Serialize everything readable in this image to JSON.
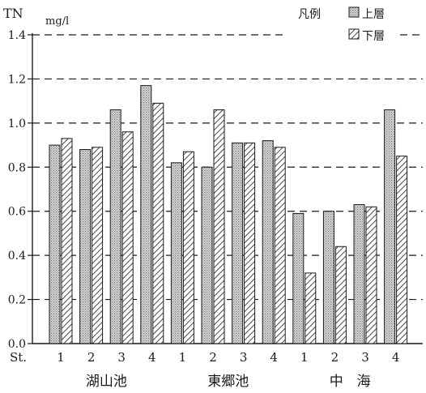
{
  "chart_data": {
    "type": "bar",
    "ylabel": "TN",
    "yunit": "mg/l",
    "ylim": [
      0,
      1.4
    ],
    "yticks": [
      "0.0",
      "0.2",
      "0.4",
      "0.6",
      "0.8",
      "1.0",
      "1.2",
      "1.4"
    ],
    "grid": "dashed horizontal at 1.4, 1.2, 1.0, 0.8, 0.6, 0.4, 0.2",
    "x_prefix": "St.",
    "categories": [
      "1",
      "2",
      "3",
      "4",
      "1",
      "2",
      "3",
      "4",
      "1",
      "2",
      "3",
      "4"
    ],
    "groups": [
      {
        "label": "湖山池",
        "stations": [
          0,
          1,
          2,
          3
        ]
      },
      {
        "label": "東郷池",
        "stations": [
          4,
          5,
          6,
          7
        ]
      },
      {
        "label": "中　海",
        "stations": [
          8,
          9,
          10,
          11
        ]
      }
    ],
    "legend": {
      "title": "凡例",
      "placement": "top-right"
    },
    "series": [
      {
        "name": "上層",
        "pattern": "dotted",
        "values": [
          0.9,
          0.88,
          1.06,
          1.17,
          0.82,
          0.8,
          0.91,
          0.92,
          0.59,
          0.6,
          0.63,
          1.06
        ]
      },
      {
        "name": "下層",
        "pattern": "hatched",
        "values": [
          0.93,
          0.89,
          0.96,
          1.09,
          0.87,
          1.06,
          0.91,
          0.89,
          0.32,
          0.44,
          0.62,
          0.85
        ]
      }
    ]
  }
}
